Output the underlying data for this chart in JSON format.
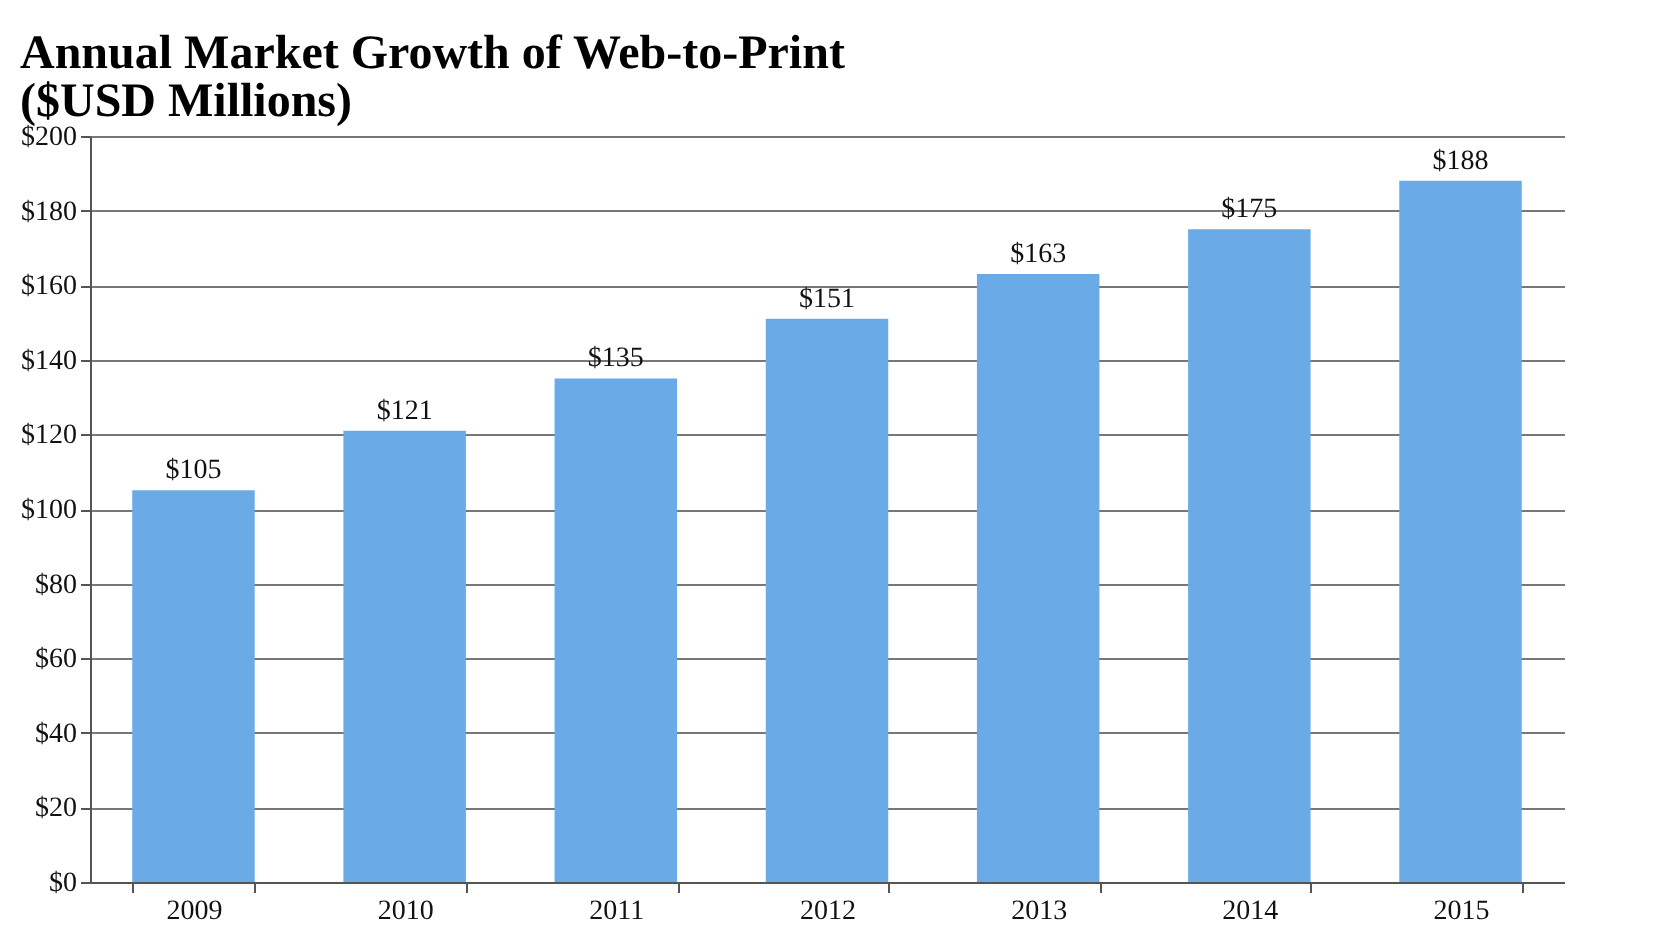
{
  "chart_data": {
    "type": "bar",
    "title": "Annual Market Growth of Web-to-Print\n($USD Millions)",
    "categories": [
      "2009",
      "2010",
      "2011",
      "2012",
      "2013",
      "2014",
      "2015"
    ],
    "values": [
      105,
      121,
      135,
      151,
      163,
      175,
      188
    ],
    "value_labels": [
      "$105",
      "$121",
      "$135",
      "$151",
      "$163",
      "$175",
      "$188"
    ],
    "color": "#6aaae6",
    "ylim": [
      0,
      200
    ],
    "yticks": [
      {
        "value": 0,
        "label": "$0"
      },
      {
        "value": 20,
        "label": "$20"
      },
      {
        "value": 40,
        "label": "$40"
      },
      {
        "value": 60,
        "label": "$60"
      },
      {
        "value": 80,
        "label": "$80"
      },
      {
        "value": 100,
        "label": "$100"
      },
      {
        "value": 120,
        "label": "$120"
      },
      {
        "value": 140,
        "label": "$140"
      },
      {
        "value": 160,
        "label": "$160"
      },
      {
        "value": 180,
        "label": "$180"
      },
      {
        "value": 200,
        "label": "$200"
      }
    ],
    "grid": "y"
  }
}
